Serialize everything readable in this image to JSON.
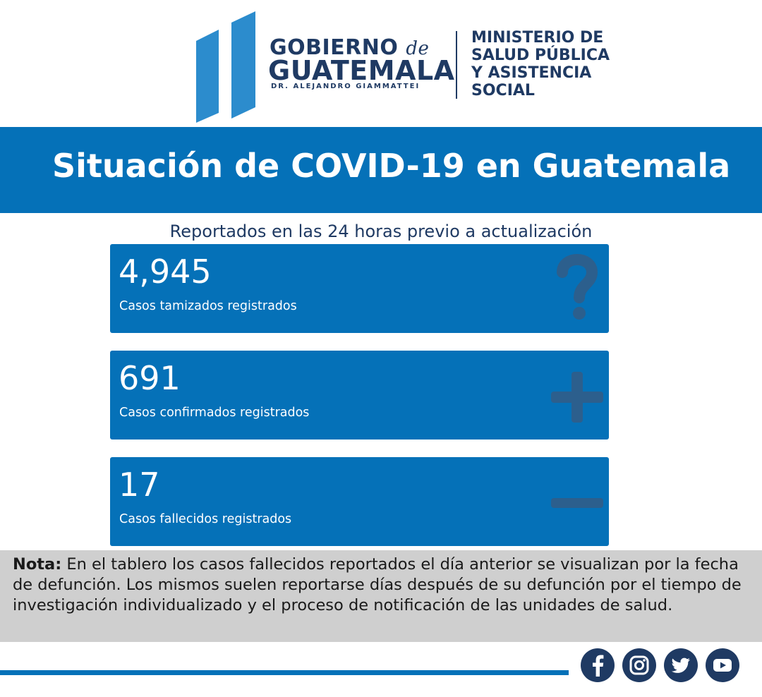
{
  "header": {
    "gov_line1": "GOBIERNO",
    "gov_de": "de",
    "gov_line2": "GUATEMALA",
    "gov_line3": "DR. ALEJANDRO GIAMMATTEI",
    "ministry_lines": [
      "MINISTERIO DE",
      "SALUD PÚBLICA",
      "Y ASISTENCIA",
      "SOCIAL"
    ]
  },
  "banner": {
    "title": "Situación de COVID-19 en Guatemala"
  },
  "subtitle": "Reportados en las 24 horas previo a actualización",
  "cards": [
    {
      "value": "4,945",
      "label": "Casos tamizados registrados",
      "icon": "question-icon"
    },
    {
      "value": "691",
      "label": "Casos confirmados registrados",
      "icon": "plus-icon"
    },
    {
      "value": "17",
      "label": "Casos fallecidos registrados",
      "icon": "minus-icon"
    }
  ],
  "note": {
    "bold": "Nota:",
    "text": " En el tablero los casos fallecidos reportados el día anterior se visualizan por la fecha de defunción. Los mismos suelen reportarse días después de su defunción por el tiempo de investigación individualizado y el proceso de notificación de las unidades de salud."
  },
  "social": [
    "facebook-icon",
    "instagram-icon",
    "twitter-icon",
    "youtube-icon"
  ],
  "colors": {
    "primary": "#0571b8",
    "navy": "#1f3a63",
    "note_bg": "#cfcfcf",
    "logo_blue": "#2c8ccd"
  }
}
